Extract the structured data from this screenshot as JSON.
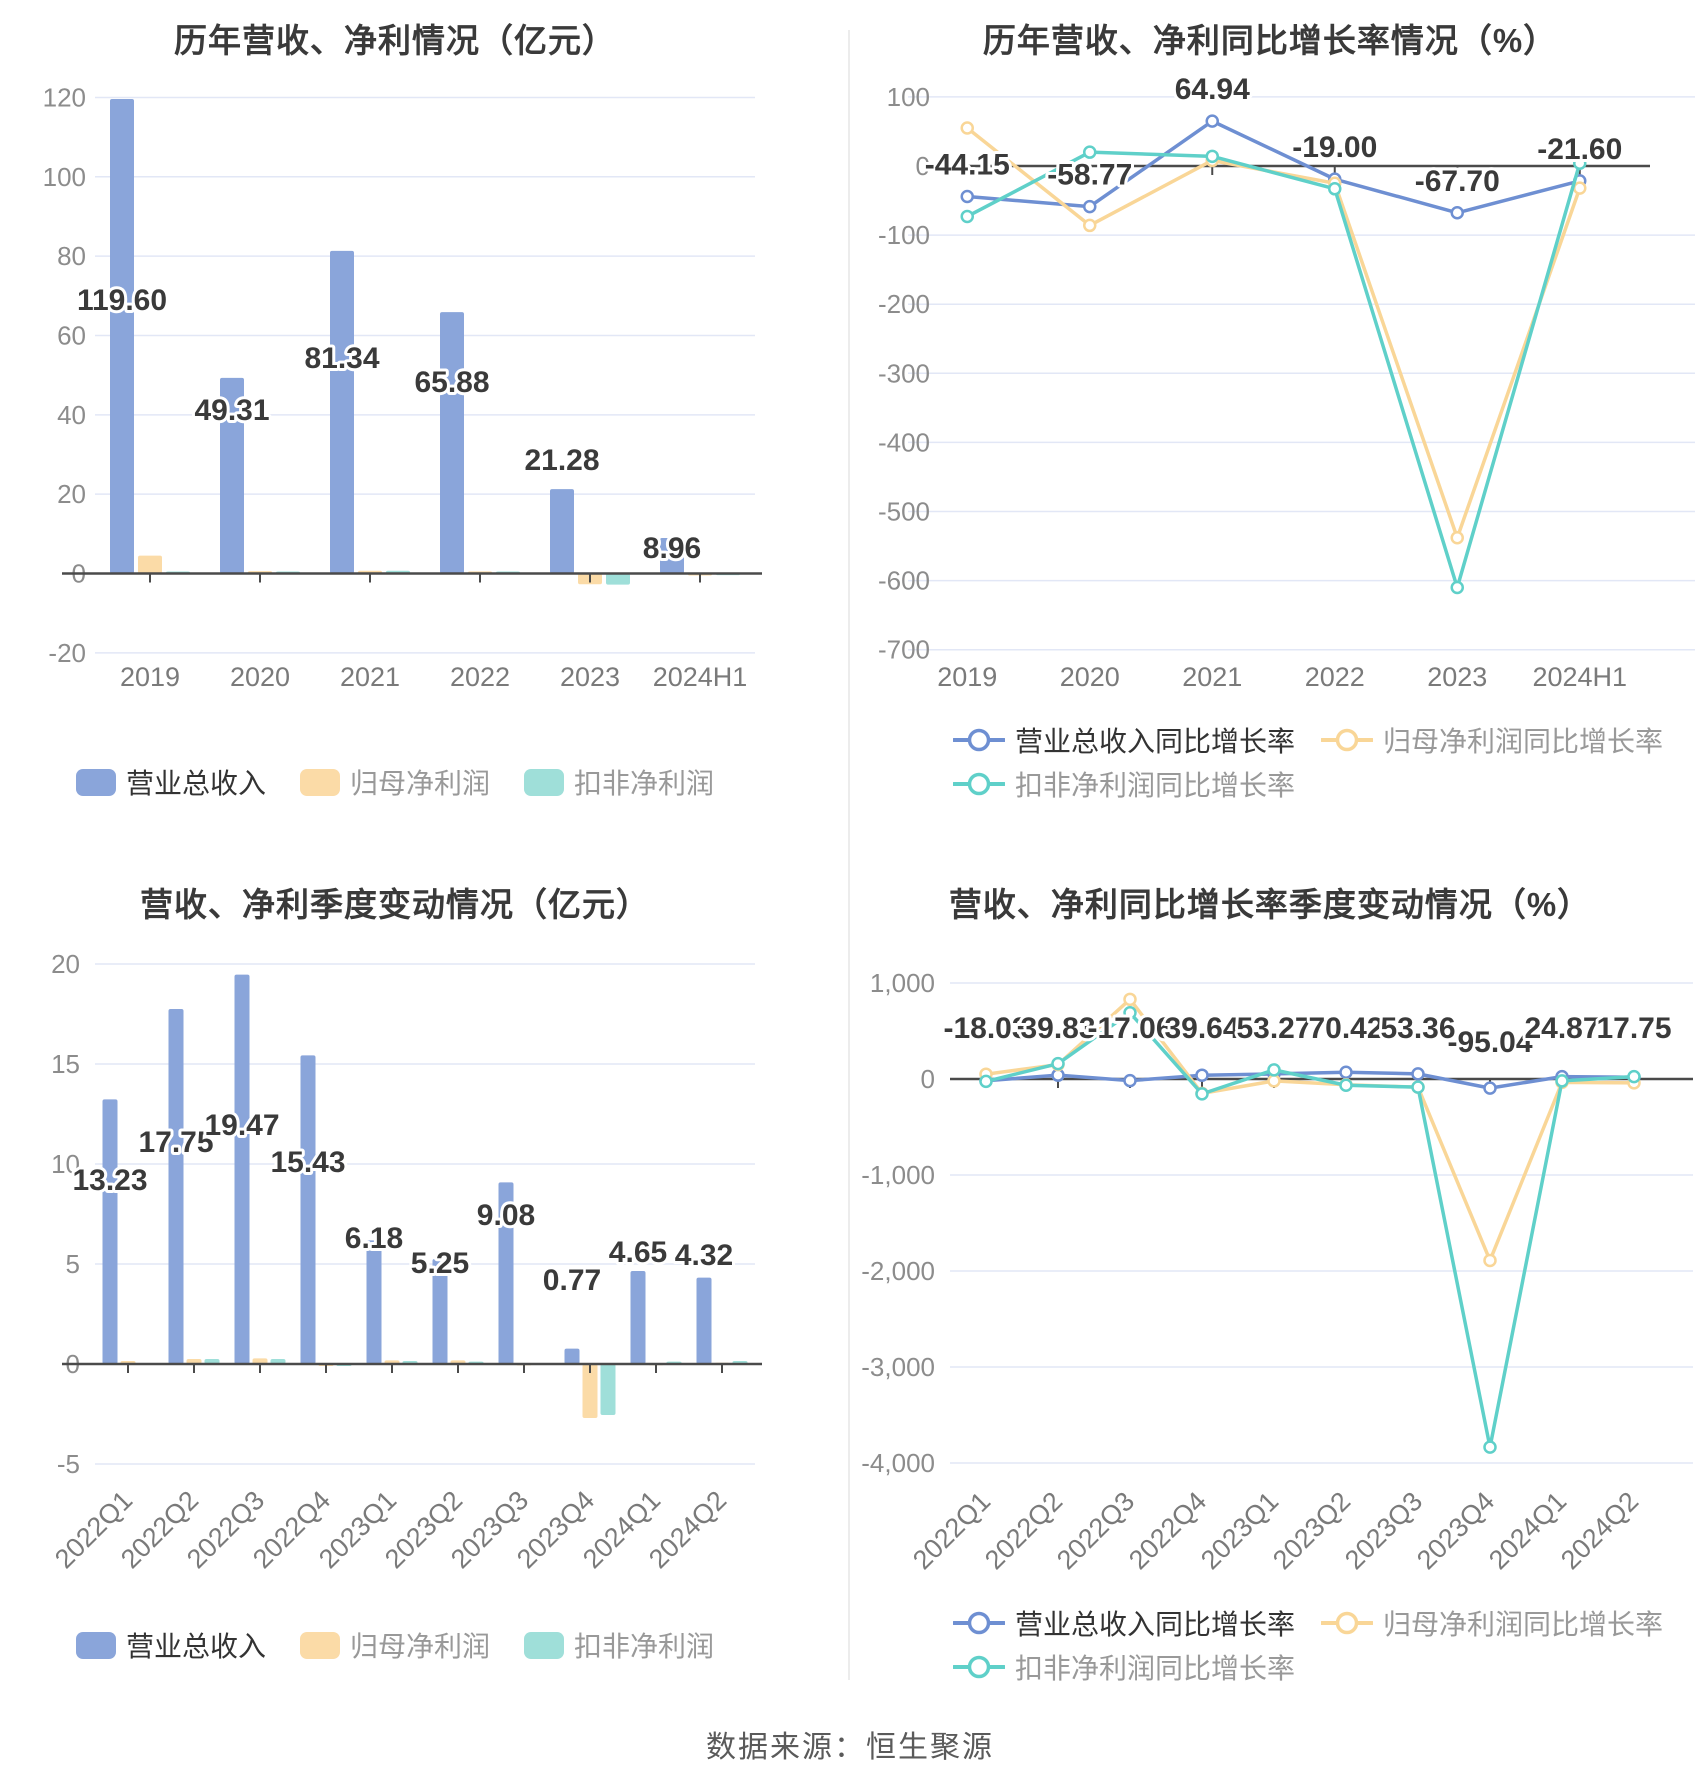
{
  "page": {
    "footer_source": "数据来源：恒生聚源"
  },
  "colors": {
    "revenue_bar": "#8AA5DA",
    "net_profit_bar": "#FBDBA7",
    "non_gaap_bar": "#9FDFD9",
    "revenue_line": "#6E8FD2",
    "net_profit_line": "#F9D697",
    "non_gaap_line": "#5FD0C9",
    "grid": "#E2E7F6",
    "axis": "#4A4A4A",
    "tick_label": "#8C8C8C",
    "x_label": "#7A7A7A",
    "data_label": "#3A3A3A",
    "title": "#3A3A3A",
    "legend_active_text": "#333333",
    "legend_muted_text": "#999999"
  },
  "chart_data": [
    {
      "id": "annual-bar",
      "type": "bar",
      "title": "历年营收、净利情况（亿元）",
      "categories": [
        "2019",
        "2020",
        "2021",
        "2022",
        "2023",
        "2024H1"
      ],
      "ytick_labels": [
        "120",
        "100",
        "80",
        "60",
        "40",
        "20",
        "0",
        "-20"
      ],
      "ytick_values": [
        120,
        100,
        80,
        60,
        40,
        20,
        0,
        -20
      ],
      "ylim": [
        -20,
        120
      ],
      "series": [
        {
          "name": "营业总收入",
          "color_key": "revenue_bar",
          "values": [
            119.6,
            49.31,
            81.34,
            65.88,
            21.28,
            8.96
          ],
          "labels": [
            "119.60",
            "49.31",
            "81.34",
            "65.88",
            "21.28",
            "8.96"
          ]
        },
        {
          "name": "归母净利润",
          "color_key": "net_profit_bar",
          "values": [
            4.5,
            0.6,
            0.7,
            0.55,
            -2.7,
            -0.12
          ]
        },
        {
          "name": "扣非净利润",
          "color_key": "non_gaap_bar",
          "values": [
            0.5,
            0.5,
            0.7,
            0.5,
            -2.8,
            0.08
          ]
        }
      ]
    },
    {
      "id": "annual-growth",
      "type": "line",
      "title": "历年营收、净利同比增长率情况（%）",
      "categories": [
        "2019",
        "2020",
        "2021",
        "2022",
        "2023",
        "2024H1"
      ],
      "ytick_labels": [
        "100",
        "0",
        "-100",
        "-200",
        "-300",
        "-400",
        "-500",
        "-600",
        "-700"
      ],
      "ytick_values": [
        100,
        0,
        -100,
        -200,
        -300,
        -400,
        -500,
        -600,
        -700
      ],
      "ylim": [
        -700,
        100
      ],
      "series": [
        {
          "name": "营业总收入同比增长率",
          "color_key": "revenue_line",
          "values": [
            -44.15,
            -58.77,
            64.94,
            -19.0,
            -67.7,
            -21.6
          ],
          "labels": [
            "-44.15",
            "-58.77",
            "64.94",
            "-19.00",
            "-67.70",
            "-21.60"
          ]
        },
        {
          "name": "归母净利润同比增长率",
          "color_key": "net_profit_line",
          "values": [
            55,
            -86,
            8,
            -25,
            -538,
            -32
          ]
        },
        {
          "name": "扣非净利润同比增长率",
          "color_key": "non_gaap_line",
          "values": [
            -73,
            20,
            14,
            -33,
            -610,
            4
          ]
        }
      ]
    },
    {
      "id": "quarterly-bar",
      "type": "bar",
      "title": "营收、净利季度变动情况（亿元）",
      "categories": [
        "2022Q1",
        "2022Q2",
        "2022Q3",
        "2022Q4",
        "2023Q1",
        "2023Q2",
        "2023Q3",
        "2023Q4",
        "2024Q1",
        "2024Q2"
      ],
      "ytick_labels": [
        "20",
        "15",
        "10",
        "5",
        "0",
        "-5"
      ],
      "ytick_values": [
        20,
        15,
        10,
        5,
        0,
        -5
      ],
      "ylim": [
        -5,
        20
      ],
      "series": [
        {
          "name": "营业总收入",
          "color_key": "revenue_bar",
          "values": [
            13.23,
            17.75,
            19.47,
            15.43,
            6.18,
            5.25,
            9.08,
            0.77,
            4.65,
            4.32
          ],
          "labels": [
            "13.23",
            "17.75",
            "19.47",
            "15.43",
            "6.18",
            "5.25",
            "9.08",
            "0.77",
            "4.65",
            "4.32"
          ]
        },
        {
          "name": "归母净利润",
          "color_key": "net_profit_bar",
          "values": [
            0.15,
            0.25,
            0.28,
            -0.07,
            0.18,
            0.18,
            0.03,
            -2.7,
            0.04,
            0.06
          ]
        },
        {
          "name": "扣非净利润",
          "color_key": "non_gaap_bar",
          "values": [
            0.05,
            0.25,
            0.25,
            -0.05,
            0.15,
            0.12,
            0.05,
            -2.55,
            0.12,
            0.15
          ]
        }
      ]
    },
    {
      "id": "quarterly-growth",
      "type": "line",
      "title": "营收、净利同比增长率季度变动情况（%）",
      "categories": [
        "2022Q1",
        "2022Q2",
        "2022Q3",
        "2022Q4",
        "2023Q1",
        "2023Q2",
        "2023Q3",
        "2023Q4",
        "2024Q1",
        "2024Q2"
      ],
      "ytick_labels": [
        "1,000",
        "0",
        "-1,000",
        "-2,000",
        "-3,000",
        "-4,000"
      ],
      "ytick_values": [
        1000,
        0,
        -1000,
        -2000,
        -3000,
        -4000
      ],
      "ylim": [
        -4000,
        1000
      ],
      "series": [
        {
          "name": "营业总收入同比增长率",
          "color_key": "revenue_line",
          "values": [
            -18.03,
            39.83,
            -17.06,
            39.64,
            53.27,
            70.42,
            53.36,
            -95.04,
            24.87,
            17.75
          ],
          "labels": [
            "-18.03",
            "39.83",
            "-17.06",
            "39.64",
            "53.27",
            "70.42",
            "53.36",
            "-95.04",
            "24.87",
            "17.75"
          ]
        },
        {
          "name": "归母净利润同比增长率",
          "color_key": "net_profit_line",
          "values": [
            50,
            150,
            830,
            -150,
            -20,
            -60,
            -85,
            -1890,
            -35,
            -40
          ]
        },
        {
          "name": "扣非净利润同比增长率",
          "color_key": "non_gaap_line",
          "values": [
            -25,
            160,
            690,
            -155,
            95,
            -65,
            -85,
            -3835,
            -20,
            25
          ]
        }
      ]
    }
  ]
}
